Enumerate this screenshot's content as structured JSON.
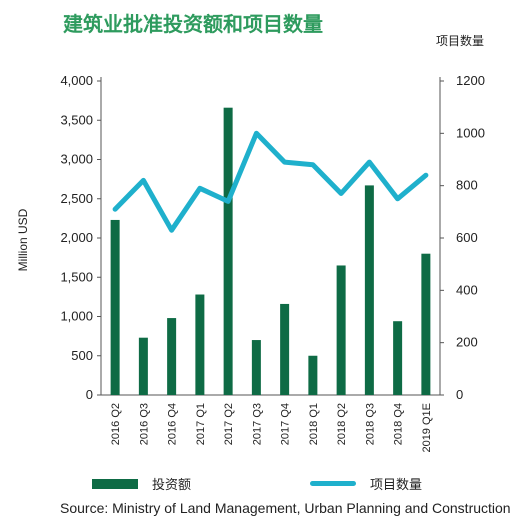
{
  "chart_data": {
    "type": "bar+line",
    "title": "建筑业批准投资额和项目数量",
    "ylabel_left": "Million USD",
    "ylabel_right": "项目数量",
    "categories": [
      "2016 Q2",
      "2016 Q3",
      "2016 Q4",
      "2017 Q1",
      "2017 Q2",
      "2017 Q3",
      "2017 Q4",
      "2018 Q1",
      "2018 Q2",
      "2018 Q3",
      "2018 Q4",
      "2019 Q1E"
    ],
    "left_axis": {
      "ylim": [
        0,
        4000
      ],
      "ticks": [
        "0",
        "500",
        "1,000",
        "1,500",
        "2,000",
        "2,500",
        "3,000",
        "3,500",
        "4,000"
      ]
    },
    "right_axis": {
      "ylim": [
        0,
        1200
      ],
      "ticks": [
        "0",
        "200",
        "400",
        "600",
        "800",
        "1000",
        "1200"
      ]
    },
    "series": [
      {
        "name": "投资额",
        "type": "bar",
        "axis": "left",
        "color": "#0e6b45",
        "values": [
          2230,
          730,
          980,
          1280,
          3660,
          700,
          1160,
          500,
          1650,
          2670,
          940,
          1800
        ]
      },
      {
        "name": "项目数量",
        "type": "line",
        "axis": "right",
        "color": "#1fb0cc",
        "values": [
          710,
          820,
          630,
          790,
          740,
          1000,
          890,
          880,
          770,
          890,
          750,
          840
        ]
      }
    ],
    "legend_position": "bottom",
    "source": "Source: Ministry of Land Management, Urban Planning and Construction"
  }
}
